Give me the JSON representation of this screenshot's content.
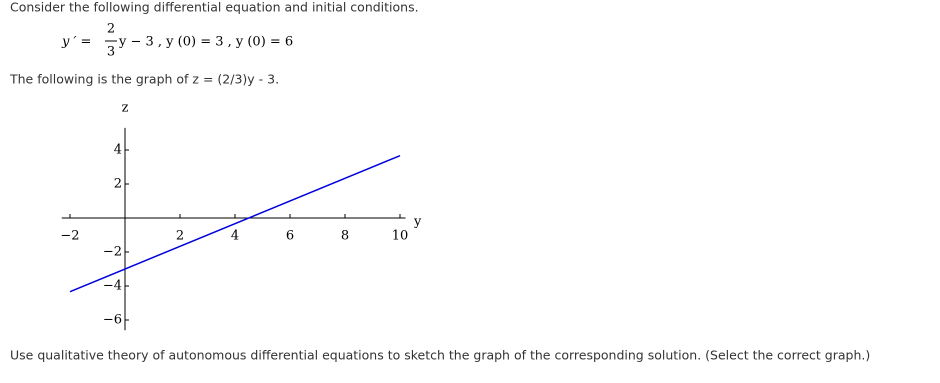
{
  "header": {
    "text": "Consider the following differential equation and initial conditions."
  },
  "equation": {
    "lhs": "y ′ =",
    "numerator": "2",
    "denominator": "3",
    "rhs": "y − 3 , y (0) = 3 , y (0) = 6"
  },
  "graph_caption": "The following is the graph of z = (2/3)y - 3.",
  "chart_data": {
    "type": "line",
    "x_label": "y",
    "y_label": "z",
    "x": [
      -2,
      10
    ],
    "values": [
      -4.333,
      3.667
    ],
    "color": "#0000dd",
    "xlim": [
      -2.3,
      10.2
    ],
    "ylim": [
      -6.6,
      5.3
    ],
    "xticks": [
      {
        "value": -2,
        "label": "−2"
      },
      2,
      4,
      6,
      8,
      10
    ],
    "yticks": [
      4,
      2,
      {
        "value": -2,
        "label": "−2"
      },
      {
        "value": -4,
        "label": "−4"
      },
      {
        "value": -6,
        "label": "−6"
      }
    ],
    "grid": false
  },
  "instruction": "Use qualitative theory of autonomous differential equations to sketch the graph of the corresponding solution. (Select the correct graph.)"
}
